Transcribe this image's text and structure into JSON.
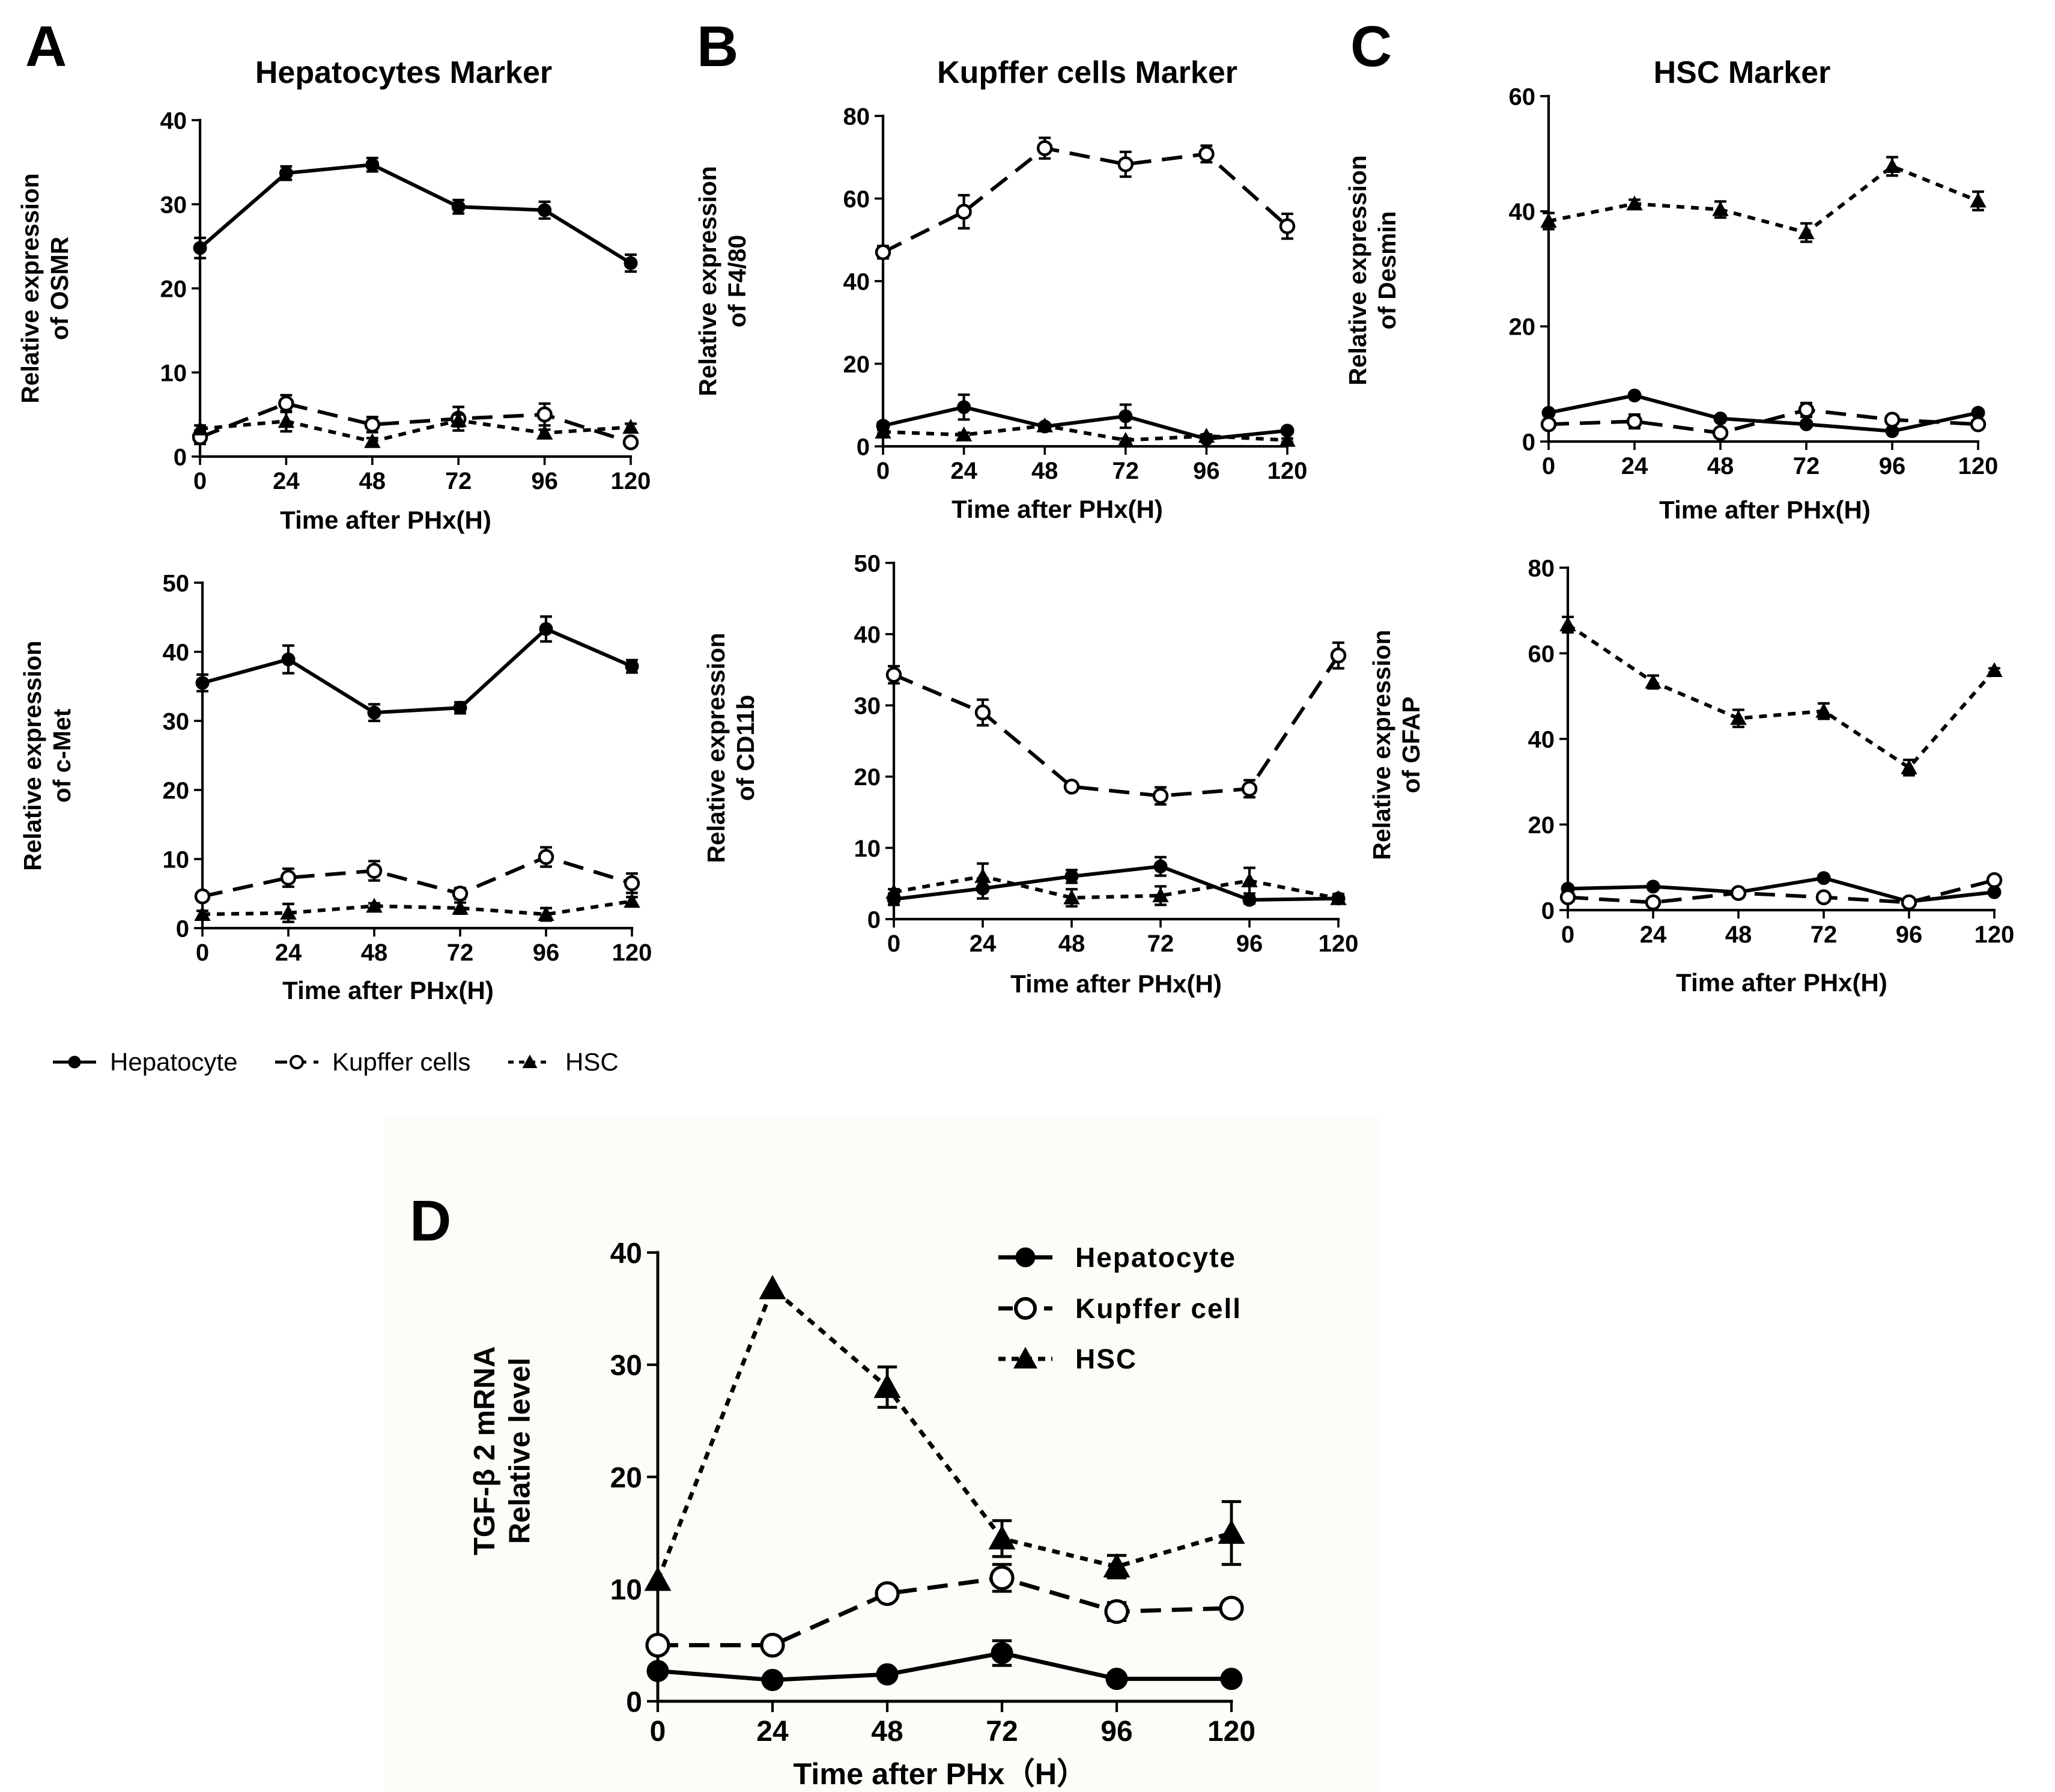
{
  "panel_labels": {
    "A": "A",
    "B": "B",
    "C": "C",
    "D": "D"
  },
  "panel_titles": {
    "A": "Hepatocytes Marker",
    "B": "Kupffer cells Marker",
    "C": "HSC Marker"
  },
  "colors": {
    "ink": "#000000",
    "panel_d_background": "#fdfdf8"
  },
  "legend_abc": [
    {
      "name": "Hepatocyte",
      "marker": "filled-circle",
      "dash": "solid"
    },
    {
      "name": "Kupffer cells",
      "marker": "open-circle",
      "dash": "long-dash"
    },
    {
      "name": "HSC",
      "marker": "triangle",
      "dash": "short-dash"
    }
  ],
  "legend_d": [
    {
      "name": "Hepatocyte",
      "marker": "filled-circle",
      "dash": "solid"
    },
    {
      "name": "Kupffer cell",
      "marker": "open-circle",
      "dash": "long-dash"
    },
    {
      "name": "HSC",
      "marker": "triangle",
      "dash": "short-dash"
    }
  ],
  "chart_data": [
    {
      "id": "A1",
      "panel": "A",
      "type": "line",
      "title": "Hepatocytes Marker",
      "xlabel": "Time after PHx(H)",
      "ylabel_lines": [
        "Relative expression",
        "of OSMR"
      ],
      "x": [
        0,
        24,
        48,
        72,
        96,
        120
      ],
      "xlim": [
        0,
        120
      ],
      "ylim": [
        0,
        40
      ],
      "yticks": [
        0,
        10,
        20,
        30,
        40
      ],
      "series": [
        {
          "name": "Hepatocyte",
          "values": [
            24.8,
            33.7,
            34.7,
            29.7,
            29.3,
            23.0
          ],
          "errors": [
            1.2,
            0.8,
            0.8,
            0.8,
            1.0,
            1.0
          ]
        },
        {
          "name": "Kupffer cells",
          "values": [
            2.3,
            6.3,
            3.8,
            4.5,
            5.0,
            1.7
          ],
          "errors": [
            0.8,
            1.0,
            0.9,
            1.4,
            1.3,
            0.4
          ]
        },
        {
          "name": "HSC",
          "values": [
            3.3,
            4.2,
            1.8,
            4.3,
            2.8,
            3.5
          ],
          "errors": [
            0.4,
            1.2,
            0.4,
            0.7,
            0.4,
            0.4
          ]
        }
      ]
    },
    {
      "id": "A2",
      "panel": "A",
      "type": "line",
      "xlabel": "Time after PHx(H)",
      "ylabel_lines": [
        "Relative expression",
        "of c-Met"
      ],
      "x": [
        0,
        24,
        48,
        72,
        96,
        120
      ],
      "xlim": [
        0,
        120
      ],
      "ylim": [
        0,
        50
      ],
      "yticks": [
        0,
        10,
        20,
        30,
        40,
        50
      ],
      "series": [
        {
          "name": "Hepatocyte",
          "values": [
            35.5,
            38.9,
            31.2,
            31.9,
            43.3,
            37.9
          ],
          "errors": [
            1.2,
            2.0,
            1.2,
            0.8,
            1.8,
            0.9
          ]
        },
        {
          "name": "Kupffer cells",
          "values": [
            4.6,
            7.3,
            8.3,
            5.0,
            10.3,
            6.5
          ],
          "errors": [
            0.6,
            1.3,
            1.4,
            0.8,
            1.4,
            1.4
          ]
        },
        {
          "name": "HSC",
          "values": [
            2.0,
            2.2,
            3.2,
            2.9,
            2.0,
            3.9
          ],
          "errors": [
            0.5,
            1.3,
            0.4,
            0.8,
            0.9,
            0.6
          ]
        }
      ]
    },
    {
      "id": "B1",
      "panel": "B",
      "type": "line",
      "title": "Kupffer cells Marker",
      "xlabel": "Time after PHx(H)",
      "ylabel_lines": [
        "Relative expression",
        "of F4/80"
      ],
      "x": [
        0,
        24,
        48,
        72,
        96,
        120
      ],
      "xlim": [
        0,
        120
      ],
      "ylim": [
        0,
        80
      ],
      "yticks": [
        0,
        20,
        40,
        60,
        80
      ],
      "series": [
        {
          "name": "Kupffer cells",
          "values": [
            47.0,
            56.8,
            72.2,
            68.3,
            70.8,
            53.3
          ],
          "errors": [
            1.5,
            4.0,
            2.5,
            3.0,
            2.0,
            3.0
          ]
        },
        {
          "name": "Hepatocyte",
          "values": [
            5.0,
            9.5,
            4.8,
            7.3,
            1.8,
            3.8
          ],
          "errors": [
            0.8,
            3.0,
            0.7,
            2.8,
            0.6,
            0.6
          ]
        },
        {
          "name": "HSC",
          "values": [
            3.5,
            2.8,
            5.0,
            1.5,
            2.5,
            1.5
          ],
          "errors": [
            0.4,
            0.5,
            0.5,
            0.4,
            0.4,
            0.4
          ]
        }
      ]
    },
    {
      "id": "B2",
      "panel": "B",
      "type": "line",
      "xlabel": "Time after PHx(H)",
      "ylabel_lines": [
        "Relative expression",
        "of CD11b"
      ],
      "x": [
        0,
        24,
        48,
        72,
        96,
        120
      ],
      "xlim": [
        0,
        120
      ],
      "ylim": [
        0,
        50
      ],
      "yticks": [
        0,
        10,
        20,
        30,
        40,
        50
      ],
      "series": [
        {
          "name": "Kupffer cells",
          "values": [
            34.3,
            29.0,
            18.6,
            17.3,
            18.3,
            37.0
          ],
          "errors": [
            1.2,
            1.8,
            0.6,
            1.2,
            1.2,
            1.8
          ]
        },
        {
          "name": "Hepatocyte",
          "values": [
            2.8,
            4.3,
            6.0,
            7.4,
            2.7,
            2.9
          ],
          "errors": [
            0.8,
            1.4,
            0.9,
            1.3,
            0.5,
            0.6
          ]
        },
        {
          "name": "HSC",
          "values": [
            3.8,
            6.0,
            3.0,
            3.3,
            5.4,
            2.9
          ],
          "errors": [
            0.4,
            1.8,
            1.2,
            1.3,
            1.8,
            0.6
          ]
        }
      ]
    },
    {
      "id": "C1",
      "panel": "C",
      "type": "line",
      "title": "HSC Marker",
      "xlabel": "Time after PHx(H)",
      "ylabel_lines": [
        "Relative expression",
        "of Desmin"
      ],
      "x": [
        0,
        24,
        48,
        72,
        96,
        120
      ],
      "xlim": [
        0,
        120
      ],
      "ylim": [
        0,
        60
      ],
      "yticks": [
        0,
        20,
        40,
        60
      ],
      "series": [
        {
          "name": "HSC",
          "values": [
            38.3,
            41.3,
            40.3,
            36.3,
            47.8,
            41.8
          ],
          "errors": [
            1.4,
            0.7,
            1.4,
            1.6,
            1.6,
            1.6
          ]
        },
        {
          "name": "Hepatocyte",
          "values": [
            5.0,
            8.0,
            4.0,
            3.0,
            1.8,
            5.0
          ],
          "errors": [
            0.4,
            0.4,
            0.4,
            0.4,
            0.4,
            0.4
          ]
        },
        {
          "name": "Kupffer cells",
          "values": [
            3.0,
            3.5,
            1.5,
            5.5,
            3.8,
            3.0
          ],
          "errors": [
            0.5,
            1.2,
            0.6,
            1.2,
            0.5,
            0.5
          ]
        }
      ]
    },
    {
      "id": "C2",
      "panel": "C",
      "type": "line",
      "xlabel": "Time after PHx(H)",
      "ylabel_lines": [
        "Relative expression",
        "of GFAP"
      ],
      "x": [
        0,
        24,
        48,
        72,
        96,
        120
      ],
      "xlim": [
        0,
        120
      ],
      "ylim": [
        0,
        80
      ],
      "yticks": [
        0,
        20,
        40,
        60,
        80
      ],
      "series": [
        {
          "name": "HSC",
          "values": [
            66.7,
            53.3,
            44.8,
            46.5,
            33.3,
            56.0
          ],
          "errors": [
            1.8,
            1.5,
            2.0,
            1.8,
            1.8,
            0.5
          ]
        },
        {
          "name": "Hepatocyte",
          "values": [
            5.0,
            5.5,
            4.2,
            7.5,
            2.0,
            4.2
          ],
          "errors": [
            0.4,
            0.4,
            0.4,
            0.4,
            0.4,
            0.4
          ]
        },
        {
          "name": "Kupffer cells",
          "values": [
            3.0,
            1.8,
            4.0,
            3.0,
            1.8,
            7.0
          ],
          "errors": [
            0.4,
            0.4,
            0.4,
            0.4,
            0.4,
            0.4
          ]
        }
      ]
    },
    {
      "id": "D",
      "panel": "D",
      "type": "line",
      "xlabel": "Time after PHx（H）",
      "ylabel_lines": [
        "TGF-β 2 mRNA",
        "Relative level"
      ],
      "x": [
        0,
        24,
        48,
        72,
        96,
        120
      ],
      "xlim": [
        0,
        120
      ],
      "ylim": [
        0,
        40
      ],
      "yticks": [
        0,
        10,
        20,
        30,
        40
      ],
      "series": [
        {
          "name": "HSC",
          "values": [
            10.8,
            36.8,
            28.0,
            14.5,
            12.0,
            15.0
          ],
          "errors": [
            0.0,
            0.0,
            1.8,
            1.6,
            1.0,
            2.8
          ]
        },
        {
          "name": "Kupffer cell",
          "values": [
            5.0,
            5.0,
            9.6,
            11.0,
            8.0,
            8.3
          ],
          "errors": [
            0.0,
            0.0,
            0.0,
            1.2,
            0.8,
            0.0
          ]
        },
        {
          "name": "Hepatocyte",
          "values": [
            2.7,
            1.9,
            2.4,
            4.3,
            2.0,
            2.0
          ],
          "errors": [
            0.0,
            0.0,
            0.0,
            1.1,
            0.0,
            0.0
          ]
        }
      ]
    }
  ]
}
